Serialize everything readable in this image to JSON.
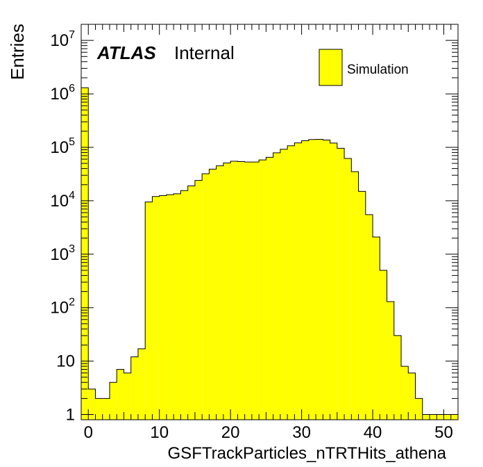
{
  "chart_data": {
    "type": "histogram",
    "title": "",
    "xlabel": "GSFTrackParticles_nTRTHits_athena",
    "ylabel": "Entries",
    "y_scale": "log",
    "xlim": [
      -1,
      52
    ],
    "ylim": [
      0.8,
      20000000
    ],
    "fill_color": "#ffff00",
    "line_color": "#000000",
    "bin_edges_start": -1,
    "bin_width": 1,
    "x_ticks": [
      0,
      10,
      20,
      30,
      40,
      50
    ],
    "y_ticks": [
      {
        "value": 1,
        "label": "1",
        "exp": ""
      },
      {
        "value": 10,
        "label": "10",
        "exp": ""
      },
      {
        "value": 100,
        "label": "10",
        "exp": "2"
      },
      {
        "value": 1000,
        "label": "10",
        "exp": "3"
      },
      {
        "value": 10000,
        "label": "10",
        "exp": "4"
      },
      {
        "value": 100000,
        "label": "10",
        "exp": "5"
      },
      {
        "value": 1000000,
        "label": "10",
        "exp": "6"
      },
      {
        "value": 10000000,
        "label": "10",
        "exp": "7"
      }
    ],
    "series": [
      {
        "name": "Simulation",
        "values": [
          1300000,
          3,
          2,
          2,
          4,
          7,
          6,
          12,
          17,
          9500,
          12000,
          12500,
          13000,
          13500,
          15500,
          19000,
          24000,
          32000,
          39000,
          45000,
          51000,
          55000,
          54000,
          53000,
          53000,
          58000,
          65000,
          79000,
          92000,
          107000,
          121000,
          133000,
          140000,
          141000,
          137000,
          120000,
          96000,
          62000,
          35000,
          15000,
          5500,
          2100,
          500,
          130,
          30,
          8,
          6,
          2,
          1,
          1,
          1,
          1,
          1
        ]
      }
    ],
    "legend": {
      "position": "top-right",
      "entries": [
        "Simulation"
      ]
    },
    "annotations": {
      "experiment": "ATLAS",
      "status": "Internal"
    }
  }
}
